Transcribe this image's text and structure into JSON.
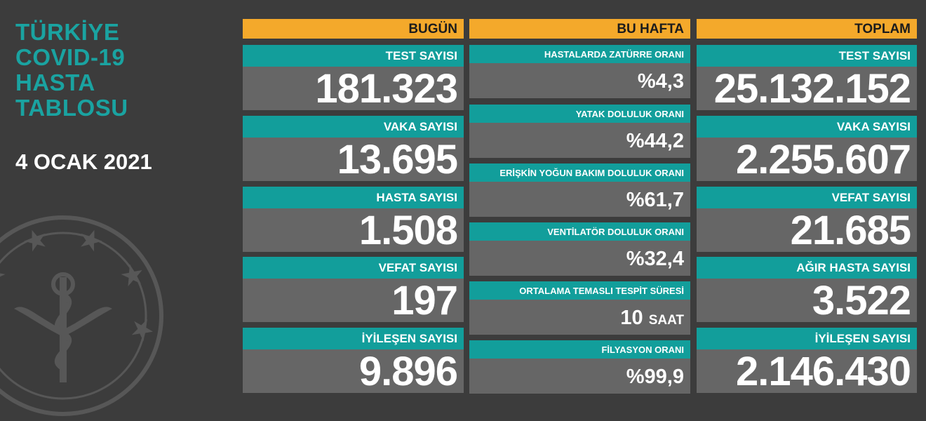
{
  "left": {
    "title_lines": [
      "TÜRKİYE",
      "COVID-19",
      "HASTA",
      "TABLOSU"
    ],
    "date": "4 OCAK 2021"
  },
  "today": {
    "header": "BUGÜN",
    "cards": [
      {
        "label": "TEST SAYISI",
        "value": "181.323"
      },
      {
        "label": "VAKA SAYISI",
        "value": "13.695"
      },
      {
        "label": "HASTA SAYISI",
        "value": "1.508"
      },
      {
        "label": "VEFAT SAYISI",
        "value": "197"
      },
      {
        "label": "İYİLEŞEN SAYISI",
        "value": "9.896"
      }
    ]
  },
  "week": {
    "header": "BU HAFTA",
    "cards": [
      {
        "label": "HASTALARDA ZATÜRRE ORANI",
        "value": "%4,3"
      },
      {
        "label": "YATAK DOLULUK ORANI",
        "value": "%44,2"
      },
      {
        "label": "ERİŞKİN YOĞUN BAKIM DOLULUK ORANI",
        "value": "%61,7"
      },
      {
        "label": "VENTİLATÖR DOLULUK ORANI",
        "value": "%32,4"
      },
      {
        "label": "ORTALAMA TEMASLI TESPİT SÜRESİ",
        "value": "10",
        "unit": "SAAT"
      },
      {
        "label": "FİLYASYON ORANI",
        "value": "%99,9"
      }
    ]
  },
  "total": {
    "header": "TOPLAM",
    "cards": [
      {
        "label": "TEST SAYISI",
        "value": "25.132.152"
      },
      {
        "label": "VAKA SAYISI",
        "value": "2.255.607"
      },
      {
        "label": "VEFAT SAYISI",
        "value": "21.685"
      },
      {
        "label": "AĞIR HASTA SAYISI",
        "value": "3.522"
      },
      {
        "label": "İYİLEŞEN SAYISI",
        "value": "2.146.430"
      }
    ]
  },
  "colors": {
    "background": "#3c3c3c",
    "header": "#f4a92b",
    "label_bg": "#129e9b",
    "value_bg": "#666666",
    "title": "#1aa3a1"
  },
  "icons": {
    "emblem": "ministry-of-health-emblem-icon"
  }
}
